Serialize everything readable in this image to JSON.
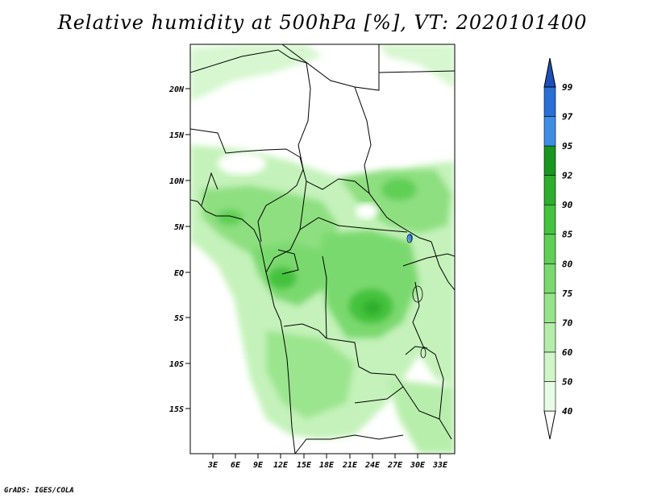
{
  "title": "Relative humidity at 500hPa [%], VT: 2020101400",
  "credit": "GrADS: IGES/COLA",
  "map": {
    "lat_labels": [
      "20N",
      "15N",
      "10N",
      "5N",
      "EQ",
      "5S",
      "10S",
      "15S"
    ],
    "lon_labels": [
      "3E",
      "6E",
      "9E",
      "12E",
      "15E",
      "18E",
      "21E",
      "24E",
      "27E",
      "30E",
      "33E"
    ]
  },
  "colorbar": {
    "levels": [
      "40",
      "50",
      "60",
      "70",
      "75",
      "80",
      "85",
      "90",
      "92",
      "95",
      "97",
      "99"
    ],
    "colors": [
      "#ffffff",
      "#e8fbe4",
      "#d0f5c8",
      "#b4edaa",
      "#96e48a",
      "#7ad96e",
      "#5fcf55",
      "#45c23e",
      "#2fad2d",
      "#1a9620",
      "#3f8ee6",
      "#2a6fd6",
      "#1c4fb8"
    ]
  },
  "colors": {
    "land_border": "#000000",
    "background": "#ffffff"
  }
}
